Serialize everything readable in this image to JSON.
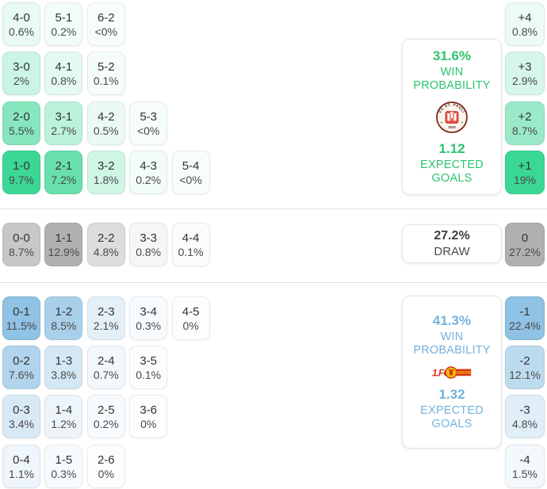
{
  "colors": {
    "home_accent": "#2cc46f",
    "home_cell_full": "#3bd795",
    "draw_cell_full": "#b0b0b0",
    "draw_text": "#3f3f3f",
    "away_accent": "#74b2dc",
    "away_cell_full": "#8fc2e4"
  },
  "chart_data": {
    "type": "heatmap",
    "description": "Correct-score probability matrix with goal-margin distribution, win/draw probabilities and expected goals",
    "sections": [
      {
        "name": "home-win",
        "score_rows": [
          [
            {
              "score": "4-0",
              "pct": "0.6%"
            },
            {
              "score": "5-1",
              "pct": "0.2%"
            },
            {
              "score": "6-2",
              "pct": "<0%"
            }
          ],
          [
            {
              "score": "3-0",
              "pct": "2%"
            },
            {
              "score": "4-1",
              "pct": "0.8%"
            },
            {
              "score": "5-2",
              "pct": "0.1%"
            }
          ],
          [
            {
              "score": "2-0",
              "pct": "5.5%"
            },
            {
              "score": "3-1",
              "pct": "2.7%"
            },
            {
              "score": "4-2",
              "pct": "0.5%"
            },
            {
              "score": "5-3",
              "pct": "<0%"
            }
          ],
          [
            {
              "score": "1-0",
              "pct": "9.7%"
            },
            {
              "score": "2-1",
              "pct": "7.2%"
            },
            {
              "score": "3-2",
              "pct": "1.8%"
            },
            {
              "score": "4-3",
              "pct": "0.2%"
            },
            {
              "score": "5-4",
              "pct": "<0%"
            }
          ]
        ],
        "margins": [
          {
            "label": "+4",
            "pct": "0.8%"
          },
          {
            "label": "+3",
            "pct": "2.9%"
          },
          {
            "label": "+2",
            "pct": "8.7%"
          },
          {
            "label": "+1",
            "pct": "19%"
          }
        ],
        "panel": {
          "win_pct": "31.6%",
          "win_label_line1": "WIN",
          "win_label_line2": "PROBABILITY",
          "team_logo": "st-pauli-logo",
          "xg": "1.12",
          "xg_label_line1": "EXPECTED",
          "xg_label_line2": "GOALS"
        }
      },
      {
        "name": "draw",
        "score_rows": [
          [
            {
              "score": "0-0",
              "pct": "8.7%"
            },
            {
              "score": "1-1",
              "pct": "12.9%"
            },
            {
              "score": "2-2",
              "pct": "4.8%"
            },
            {
              "score": "3-3",
              "pct": "0.8%"
            },
            {
              "score": "4-4",
              "pct": "0.1%"
            }
          ]
        ],
        "margins": [
          {
            "label": "0",
            "pct": "27.2%"
          }
        ],
        "panel": {
          "draw_pct": "27.2%",
          "draw_label": "DRAW"
        }
      },
      {
        "name": "away-win",
        "score_rows": [
          [
            {
              "score": "0-1",
              "pct": "11.5%"
            },
            {
              "score": "1-2",
              "pct": "8.5%"
            },
            {
              "score": "2-3",
              "pct": "2.1%"
            },
            {
              "score": "3-4",
              "pct": "0.3%"
            },
            {
              "score": "4-5",
              "pct": "0%"
            }
          ],
          [
            {
              "score": "0-2",
              "pct": "7.6%"
            },
            {
              "score": "1-3",
              "pct": "3.8%"
            },
            {
              "score": "2-4",
              "pct": "0.7%"
            },
            {
              "score": "3-5",
              "pct": "0.1%"
            }
          ],
          [
            {
              "score": "0-3",
              "pct": "3.4%"
            },
            {
              "score": "1-4",
              "pct": "1.2%"
            },
            {
              "score": "2-5",
              "pct": "0.2%"
            },
            {
              "score": "3-6",
              "pct": "0%"
            }
          ],
          [
            {
              "score": "0-4",
              "pct": "1.1%"
            },
            {
              "score": "1-5",
              "pct": "0.3%"
            },
            {
              "score": "2-6",
              "pct": "0%"
            }
          ]
        ],
        "margins": [
          {
            "label": "-1",
            "pct": "22.4%"
          },
          {
            "label": "-2",
            "pct": "12.1%"
          },
          {
            "label": "-3",
            "pct": "4.8%"
          },
          {
            "label": "-4",
            "pct": "1.5%"
          }
        ],
        "panel": {
          "win_pct": "41.3%",
          "win_label_line1": "WIN",
          "win_label_line2": "PROBABILITY",
          "team_logo": "union-berlin-logo",
          "xg": "1.32",
          "xg_label_line1": "EXPECTED",
          "xg_label_line2": "GOALS"
        }
      }
    ]
  }
}
